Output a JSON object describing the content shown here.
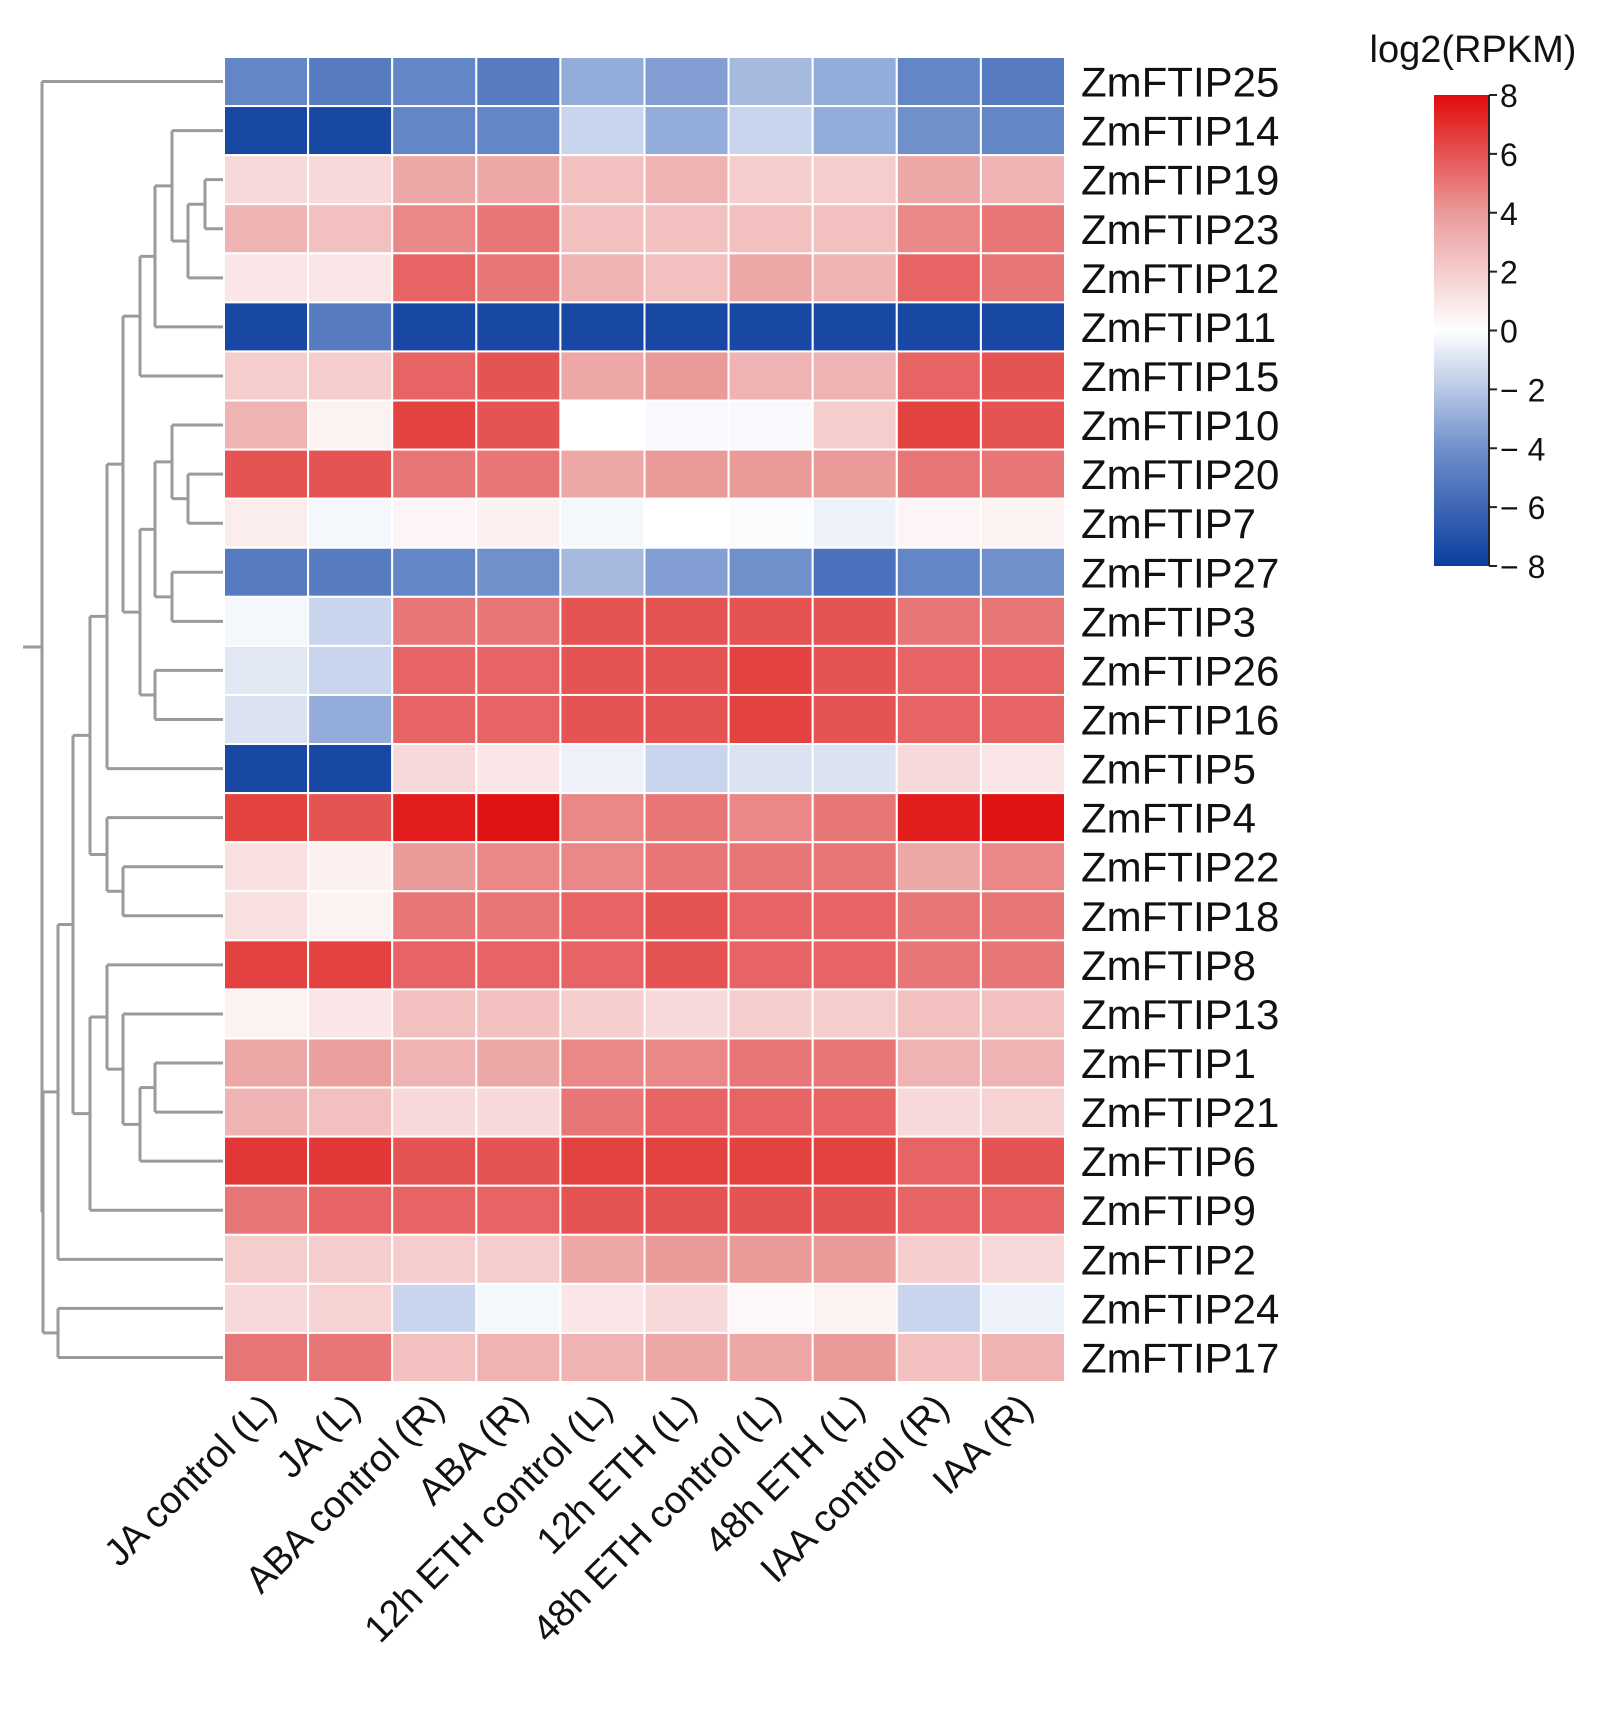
{
  "chart_data": {
    "type": "heatmap",
    "title": "",
    "colorbar": {
      "title": "log2(RPKM)",
      "range": [
        -8,
        8
      ],
      "ticks": [
        "8",
        "6",
        "4",
        "2",
        "0",
        "− 2",
        "− 4",
        "− 6",
        "− 8"
      ],
      "tick_values": [
        8,
        6,
        4,
        2,
        0,
        -2,
        -4,
        -6,
        -8
      ],
      "colors": {
        "low": "#0b3d9e",
        "mid_low": "#7090cc",
        "zero": "#ffffff",
        "mid_high": "#eb9a9a",
        "high": "#e00b0b"
      }
    },
    "columns": [
      "JA control (L)",
      "JA (L)",
      "ABA control (R)",
      "ABA (R)",
      "12h ETH control (L)",
      "12h ETH (L)",
      "48h ETH control (L)",
      "48h ETH (L)",
      "IAA control (R)",
      "IAA (R)"
    ],
    "rows": [
      "ZmFTIP25",
      "ZmFTIP14",
      "ZmFTIP19",
      "ZmFTIP23",
      "ZmFTIP12",
      "ZmFTIP11",
      "ZmFTIP15",
      "ZmFTIP10",
      "ZmFTIP20",
      "ZmFTIP7",
      "ZmFTIP27",
      "ZmFTIP3",
      "ZmFTIP26",
      "ZmFTIP16",
      "ZmFTIP5",
      "ZmFTIP4",
      "ZmFTIP22",
      "ZmFTIP18",
      "ZmFTIP8",
      "ZmFTIP13",
      "ZmFTIP1",
      "ZmFTIP21",
      "ZmFTIP6",
      "ZmFTIP9",
      "ZmFTIP2",
      "ZmFTIP24",
      "ZmFTIP17"
    ],
    "values": [
      [
        -4.5,
        -5,
        -4.5,
        -5,
        -3,
        -3.5,
        -2.5,
        -3,
        -4.5,
        -5
      ],
      [
        -7.5,
        -7.5,
        -4.5,
        -4.5,
        -1.5,
        -3,
        -1.5,
        -3,
        -4,
        -4.5
      ],
      [
        1.5,
        1.5,
        3.5,
        3.5,
        2.5,
        3,
        2,
        2,
        3.5,
        3
      ],
      [
        3,
        2.5,
        4.5,
        5,
        2.5,
        2.5,
        2.5,
        2.5,
        4.5,
        5
      ],
      [
        1,
        1,
        5.5,
        5,
        3,
        2.5,
        3.5,
        3,
        5.5,
        5
      ],
      [
        -7.5,
        -5,
        -7.5,
        -7.5,
        -7.5,
        -7.5,
        -7.5,
        -7.5,
        -7.5,
        -7.5
      ],
      [
        2,
        2,
        5.5,
        6,
        3.5,
        4,
        3,
        3,
        5.5,
        6
      ],
      [
        3,
        0.5,
        6.5,
        6,
        0,
        -0.2,
        -0.2,
        2,
        6.5,
        6
      ],
      [
        6,
        6,
        5,
        5,
        3.5,
        4,
        4,
        4,
        5,
        5
      ],
      [
        0.7,
        -0.3,
        0.4,
        0.6,
        -0.3,
        0,
        -0.1,
        -0.5,
        0.4,
        0.5
      ],
      [
        -5,
        -5,
        -4.5,
        -4,
        -2.5,
        -3.5,
        -4,
        -5.5,
        -4.5,
        -4
      ],
      [
        -0.3,
        -1.5,
        5,
        5,
        6,
        6,
        6,
        6,
        5,
        5
      ],
      [
        -0.8,
        -1.5,
        5.5,
        5.5,
        6,
        6,
        6.5,
        6,
        5.5,
        5.5
      ],
      [
        -1,
        -3,
        5.5,
        5.5,
        6,
        6,
        6.5,
        6,
        5.5,
        5.5
      ],
      [
        -7.5,
        -7.5,
        1.5,
        1,
        -0.5,
        -1.5,
        -1,
        -1,
        1.5,
        1
      ],
      [
        6.5,
        6,
        7.5,
        7.8,
        4.5,
        5,
        4.5,
        5,
        7.5,
        7.8
      ],
      [
        1.2,
        0.6,
        4,
        4.5,
        4.5,
        5,
        5,
        5,
        3.5,
        4.5
      ],
      [
        1.2,
        0.5,
        5,
        5,
        5.5,
        6,
        5.5,
        5.5,
        5,
        5
      ],
      [
        6.5,
        6.5,
        5.5,
        5.5,
        5.5,
        6,
        5.5,
        5.5,
        5,
        5
      ],
      [
        0.5,
        1,
        2.5,
        2.5,
        2,
        1.5,
        2,
        2,
        2.5,
        2.5
      ],
      [
        3.5,
        3.8,
        3,
        3.5,
        4.5,
        4.5,
        5,
        5,
        3,
        3
      ],
      [
        3,
        2.5,
        1.5,
        1.5,
        5,
        5.5,
        5.5,
        5.5,
        1.5,
        1.8
      ],
      [
        6.8,
        6.8,
        6,
        6,
        6.5,
        6.5,
        6.5,
        6.5,
        5.5,
        6
      ],
      [
        5,
        5.5,
        5.5,
        5.5,
        6,
        6,
        6,
        6,
        5.5,
        5.5
      ],
      [
        2,
        2,
        2,
        2,
        3.5,
        4,
        4,
        4,
        2,
        1.5
      ],
      [
        1.5,
        1.8,
        -1.5,
        -0.3,
        1,
        1.5,
        0.3,
        0.5,
        -1.5,
        -0.5
      ],
      [
        5,
        5,
        2.5,
        3,
        3,
        3.5,
        3.5,
        4,
        2.5,
        3
      ]
    ],
    "row_dendrogram": true,
    "legend_placement": "top-right"
  }
}
